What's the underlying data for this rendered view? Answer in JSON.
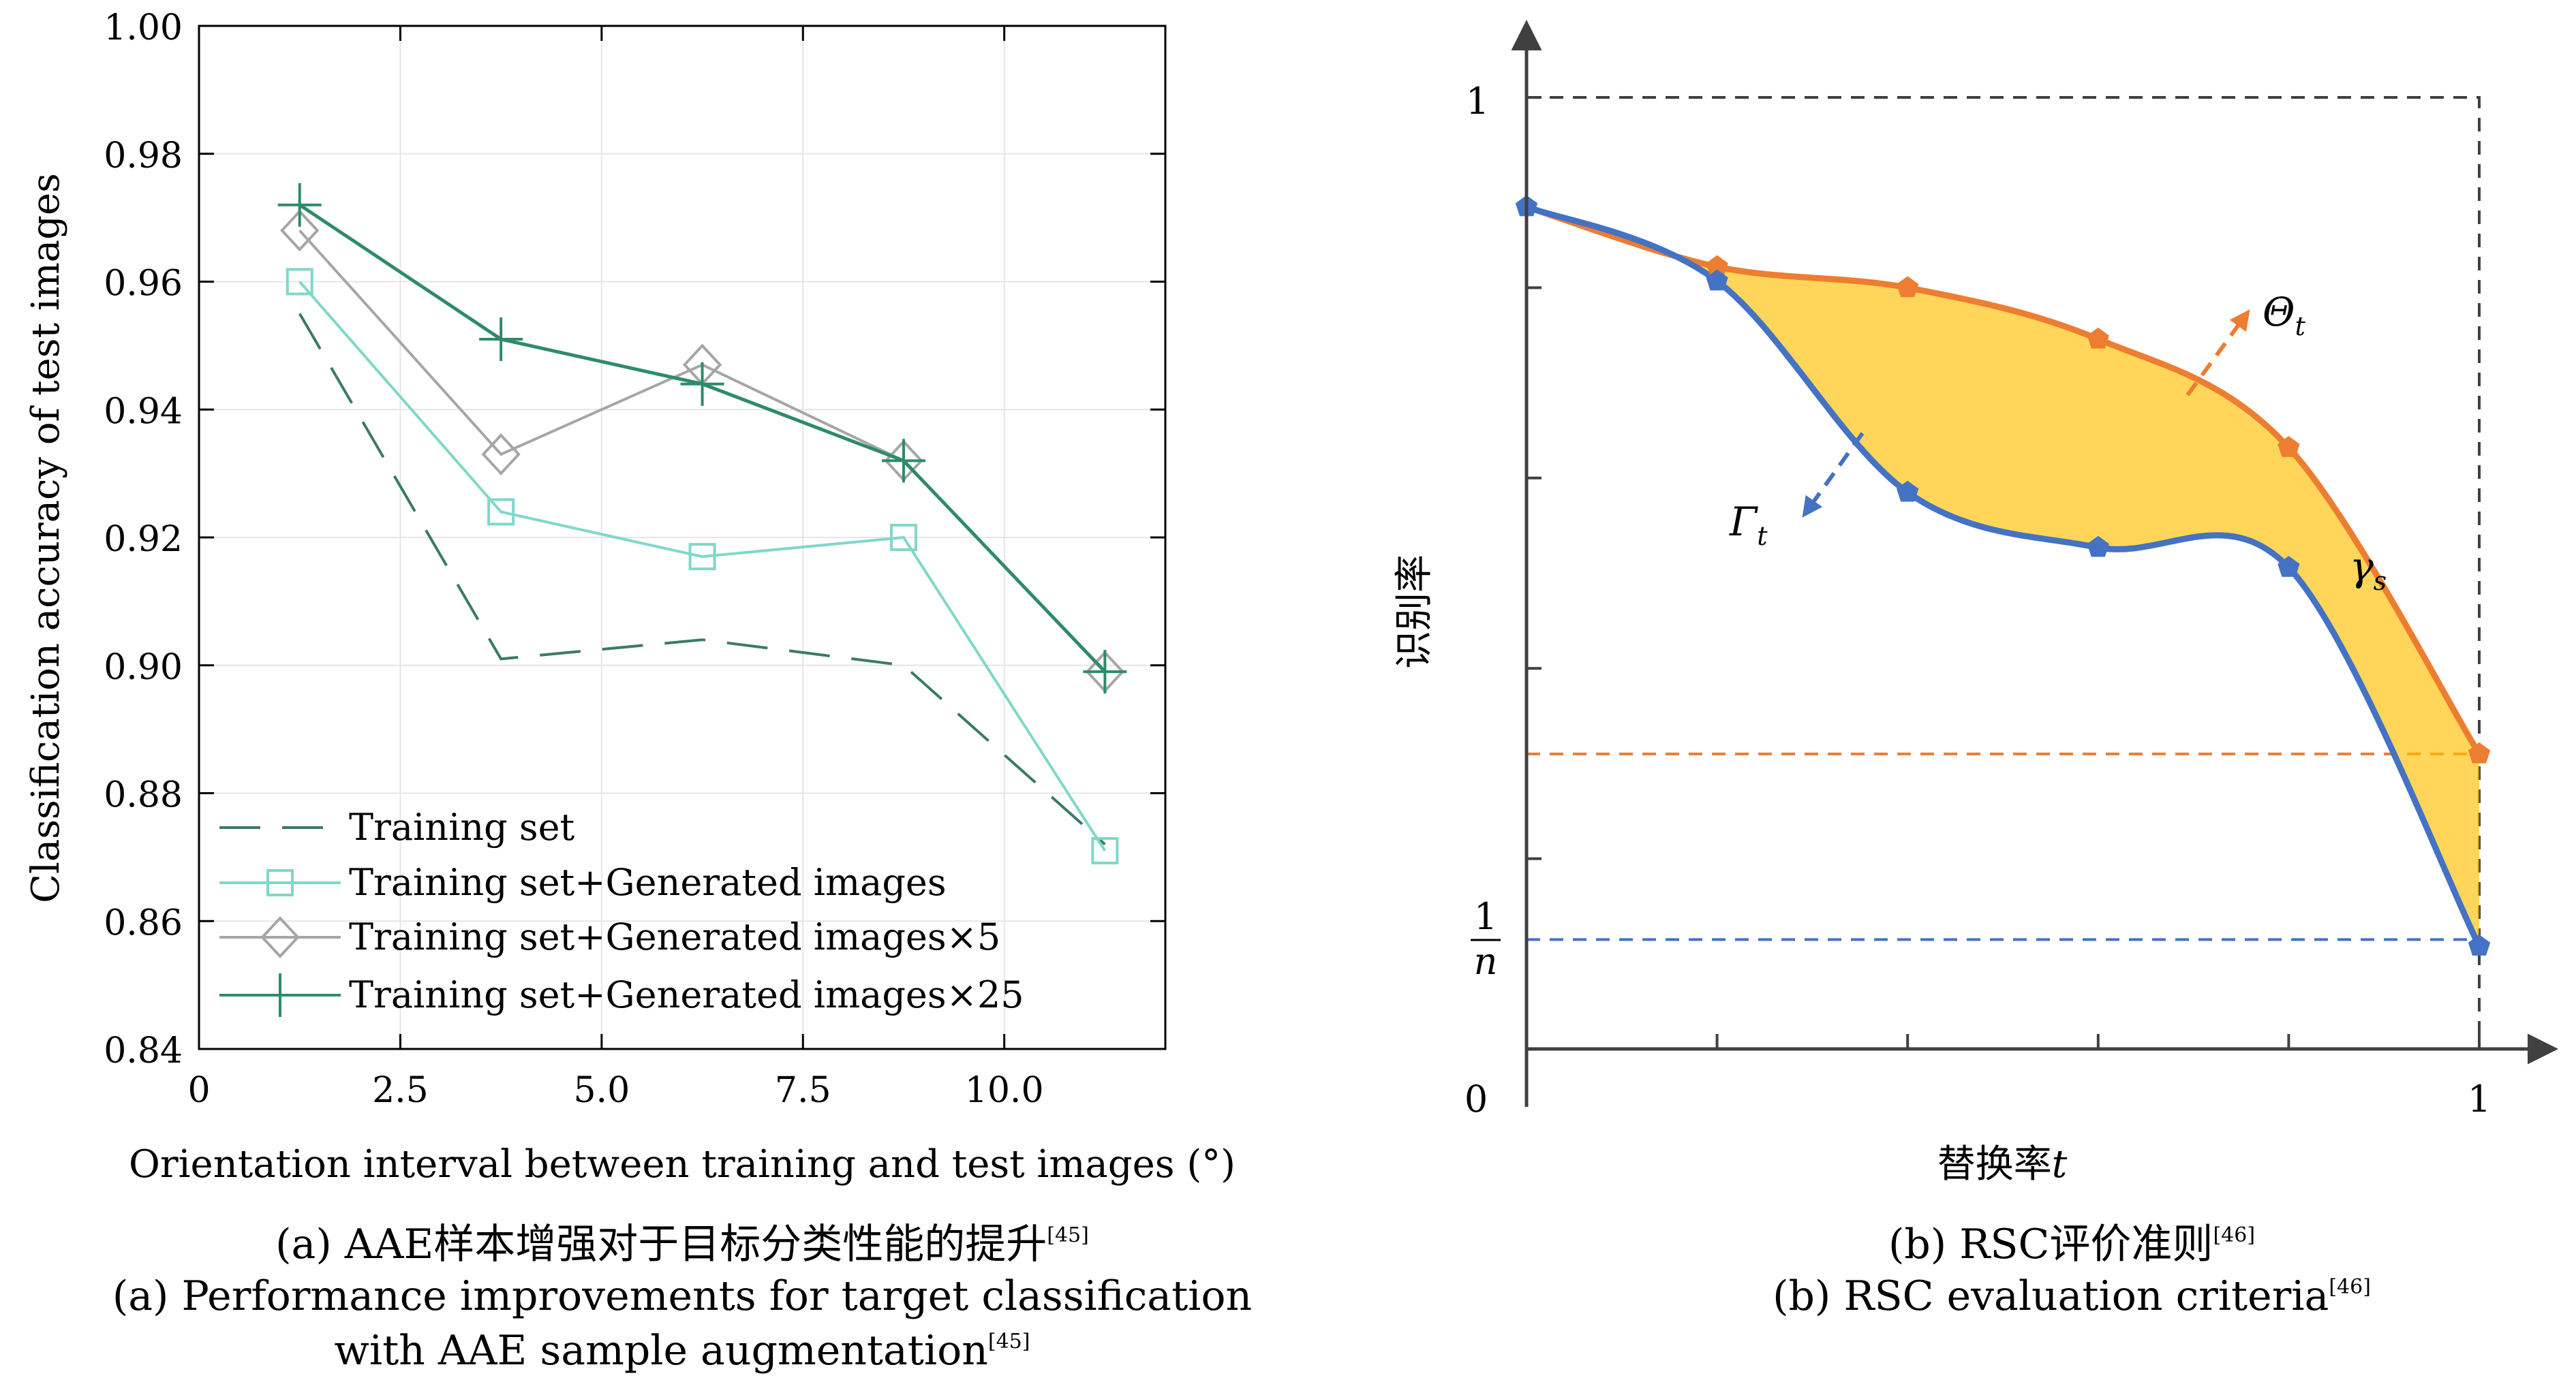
{
  "chart_data": [
    {
      "type": "line",
      "xlabel": "Orientation interval between training and test images (°)",
      "ylabel": "Classification accuracy of test images",
      "xlim": [
        0,
        12
      ],
      "ylim": [
        0.84,
        1.0
      ],
      "xticks": [
        0,
        2.5,
        5.0,
        7.5,
        10.0
      ],
      "xtick_labels": [
        "0",
        "2.5",
        "5.0",
        "7.5",
        "10.0"
      ],
      "yticks": [
        0.84,
        0.86,
        0.88,
        0.9,
        0.92,
        0.94,
        0.96,
        0.98,
        1.0
      ],
      "ytick_labels": [
        "0.84",
        "0.86",
        "0.88",
        "0.90",
        "0.92",
        "0.94",
        "0.96",
        "0.98",
        "1.00"
      ],
      "grid": true,
      "legend_position": "bottom-left",
      "x": [
        1.25,
        3.75,
        6.25,
        8.75,
        11.25
      ],
      "series": [
        {
          "name": "Training set",
          "values": [
            0.955,
            0.901,
            0.904,
            0.9,
            0.872
          ],
          "color": "#3a7a68",
          "dash": "long-dash",
          "marker": "none"
        },
        {
          "name": "Training set+Generated images",
          "values": [
            0.96,
            0.924,
            0.917,
            0.92,
            0.871
          ],
          "color": "#7fd8c8",
          "dash": "solid",
          "marker": "square"
        },
        {
          "name": "Training set+Generated images×5",
          "values": [
            0.968,
            0.933,
            0.947,
            0.932,
            0.899
          ],
          "color": "#a6a6a6",
          "dash": "solid",
          "marker": "diamond"
        },
        {
          "name": "Training set+Generated images×25",
          "values": [
            0.972,
            0.951,
            0.944,
            0.932,
            0.899
          ],
          "color": "#2e8b6a",
          "dash": "solid",
          "marker": "plus"
        }
      ],
      "caption_line1": "(a) AAE样本增强对于目标分类性能的提升",
      "caption_line2": "(a) Performance improvements for target classification",
      "caption_line3": "with AAE sample augmentation",
      "caption_ref": "[45]"
    },
    {
      "type": "area",
      "xlabel": "替换率",
      "xlabel_var": "t",
      "ylabel": "识别率",
      "xlim": [
        0,
        1
      ],
      "ylim": [
        0,
        1
      ],
      "x_tick_positions": [
        0,
        0.2,
        0.4,
        0.6,
        0.8,
        1
      ],
      "y_tick_positions": [
        0.2,
        0.4,
        0.6,
        0.8,
        1
      ],
      "origin_label": "0",
      "x_end_label": "1",
      "y_top_label": "1",
      "y_low_label_num": "1",
      "y_low_label_den": "n",
      "chance_level": 0.115,
      "x": [
        0,
        0.2,
        0.4,
        0.6,
        0.8,
        1
      ],
      "series": [
        {
          "name": "Θ",
          "subscript": "t",
          "values": [
            0.885,
            0.822,
            0.8,
            0.746,
            0.632,
            0.31
          ],
          "color": "#ed7d31"
        },
        {
          "name": "Γ",
          "subscript": "t",
          "values": [
            0.885,
            0.807,
            0.585,
            0.527,
            0.506,
            0.108
          ],
          "color": "#4472c4"
        }
      ],
      "fill_label": "γ",
      "fill_label_sub": "s",
      "fill_color": "#ffc000",
      "caption_line1": "(b) RSC评价准则",
      "caption_line2": "(b) RSC evaluation criteria",
      "caption_ref": "[46]"
    }
  ]
}
